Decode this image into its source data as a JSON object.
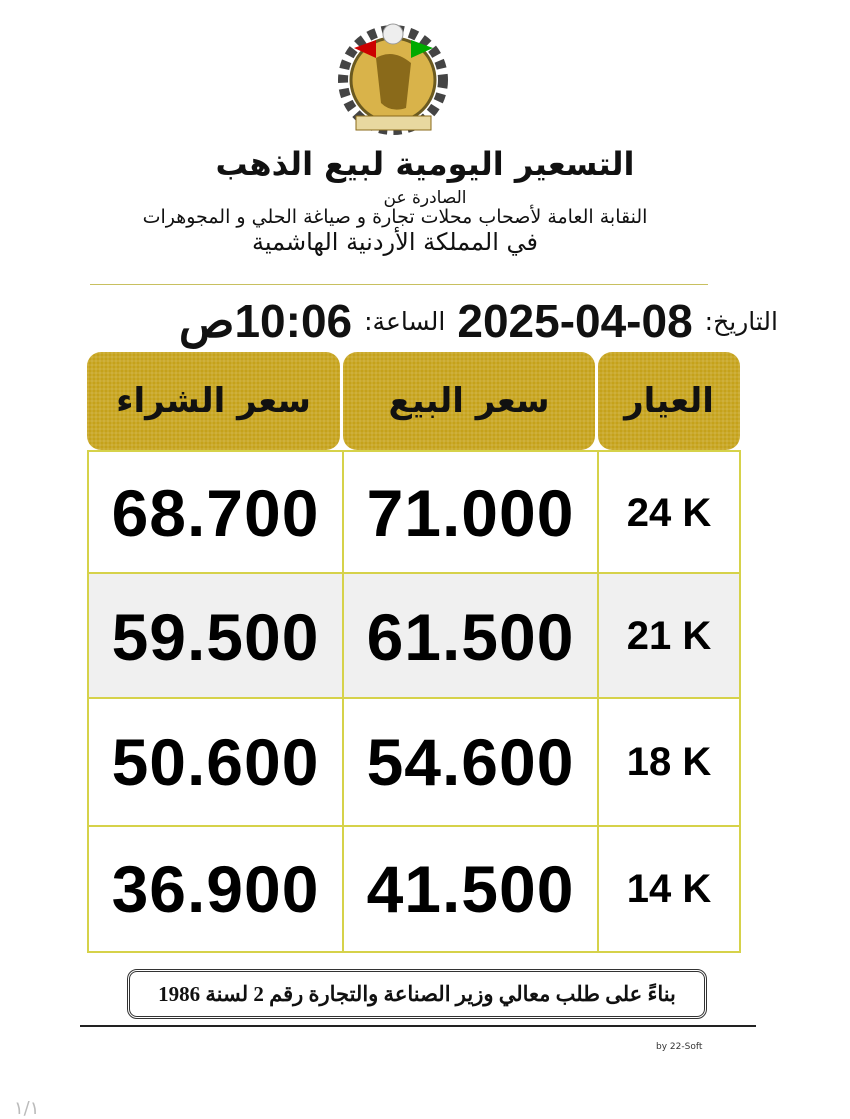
{
  "header": {
    "title": "التسعير اليومية لبيع الذهب",
    "issued_by": "الصادرة عن",
    "organization": "النقابة العامة لأصحاب محلات تجارة و صياغة الحلي و المجوهرات",
    "country": "في المملكة الأردنية الهاشمية"
  },
  "date_line": {
    "date_label": "التاريخ:",
    "date": "2025-04-08",
    "time_label": "الساعة:",
    "time": "10:06ص"
  },
  "table": {
    "columns": {
      "karat": "العيار",
      "sell": "سعر البيع",
      "buy": "سعر الشراء"
    },
    "rows": [
      {
        "karat": "24 K",
        "sell": "71.000",
        "buy": "68.700"
      },
      {
        "karat": "21 K",
        "sell": "61.500",
        "buy": "59.500"
      },
      {
        "karat": "18 K",
        "sell": "54.600",
        "buy": "50.600"
      },
      {
        "karat": "14 K",
        "sell": "41.500",
        "buy": "36.900"
      }
    ]
  },
  "footer": {
    "note": "بناءً على طلب معالي وزير الصناعة والتجارة رقم 2 لسنة 1986",
    "credit": "by 22-Soft",
    "page_indicator": "١/١"
  },
  "colors": {
    "header_gold": "#c5a21a",
    "grid_border": "#d6d24a",
    "alt_row": "#f0f0f0"
  }
}
